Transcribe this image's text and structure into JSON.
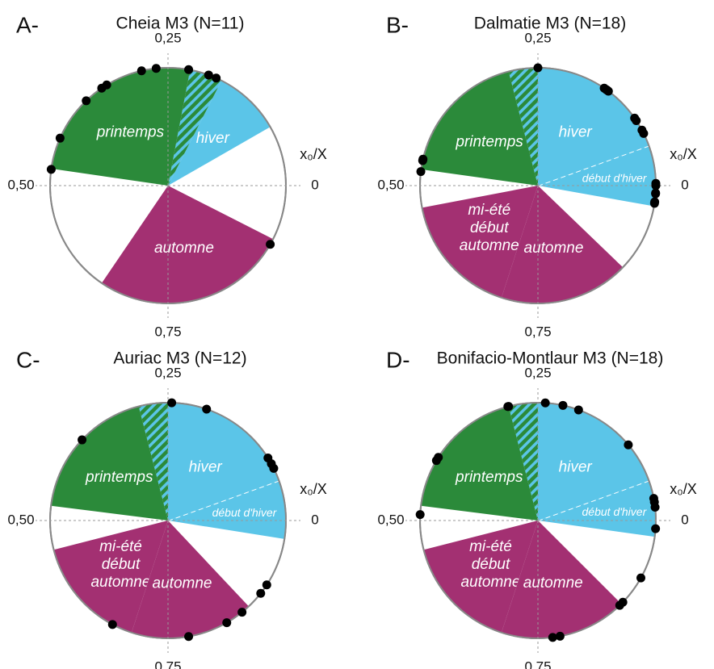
{
  "chart_data": [
    {
      "type": "circular",
      "panel": "A-",
      "title": "Cheia M3 (N=11)",
      "axis_label": "x₀/X",
      "ticks": [
        0,
        {
          "value": 0.25,
          "label": "0,25"
        },
        {
          "value": 0.5,
          "label": "0,50"
        },
        {
          "value": 0.75,
          "label": "0,75"
        }
      ],
      "sectors": [
        {
          "lines": [
            "hiver"
          ],
          "color": "#5bc5e8",
          "start": 0.083,
          "end": 0.175
        },
        {
          "hatch": true,
          "color": "#2b8a3a",
          "start": 0.175,
          "end": 0.22
        },
        {
          "lines": [
            "printemps"
          ],
          "color": "#2b8a3a",
          "start": 0.22,
          "end": 0.477
        },
        {
          "lines": [
            "automne"
          ],
          "color": "#a33072",
          "start": 0.655,
          "end": 0.925
        }
      ],
      "points": [
        0.478,
        0.434,
        0.372,
        0.345,
        0.337,
        0.286,
        0.266,
        0.222,
        0.194,
        0.183,
        0.917
      ]
    },
    {
      "type": "circular",
      "panel": "B-",
      "title": "Dalmatie M3 (N=18)",
      "axis_label": "x₀/X",
      "ticks": [
        0,
        {
          "value": 0.25,
          "label": "0,25"
        },
        {
          "value": 0.5,
          "label": "0,50"
        },
        {
          "value": 0.75,
          "label": "0,75"
        }
      ],
      "sectors": [
        {
          "lines": [
            "début d'hiver"
          ],
          "color": "#5bc5e8",
          "start": 0.972,
          "end": 0.055,
          "dashed": true
        },
        {
          "lines": [
            "hiver"
          ],
          "color": "#5bc5e8",
          "start": 0.055,
          "end": 0.25
        },
        {
          "hatch": true,
          "color": "#2b8a3a",
          "start": 0.25,
          "end": 0.29
        },
        {
          "lines": [
            "printemps"
          ],
          "color": "#2b8a3a",
          "start": 0.29,
          "end": 0.478
        },
        {
          "lines": [
            "mi-été",
            "début",
            "automne"
          ],
          "color": "#a33072",
          "start": 0.53,
          "end": 0.7
        },
        {
          "lines": [
            "automne"
          ],
          "color": "#a33072",
          "start": 0.7,
          "end": 0.878
        }
      ],
      "points": [
        0.25,
        0.155,
        0.152,
        0.15,
        0.148,
        0.097,
        0.093,
        0.078,
        0.073,
        0.003,
        0.0,
        0.99,
        0.989,
        0.978,
        0.976,
        0.466,
        0.464,
        0.481
      ]
    },
    {
      "type": "circular",
      "panel": "C-",
      "title": "Auriac M3 (N=12)",
      "axis_label": "x₀/X",
      "ticks": [
        0,
        {
          "value": 0.25,
          "label": "0,25"
        },
        {
          "value": 0.5,
          "label": "0,50"
        },
        {
          "value": 0.75,
          "label": "0,75"
        }
      ],
      "sectors": [
        {
          "lines": [
            "début d'hiver"
          ],
          "color": "#5bc5e8",
          "start": 0.975,
          "end": 0.055,
          "dashed": true
        },
        {
          "lines": [
            "hiver"
          ],
          "color": "#5bc5e8",
          "start": 0.055,
          "end": 0.25
        },
        {
          "hatch": true,
          "color": "#2b8a3a",
          "start": 0.25,
          "end": 0.29
        },
        {
          "lines": [
            "printemps"
          ],
          "color": "#2b8a3a",
          "start": 0.29,
          "end": 0.48
        },
        {
          "lines": [
            "mi-été",
            "début",
            "automne"
          ],
          "color": "#a33072",
          "start": 0.54,
          "end": 0.7
        },
        {
          "lines": [
            "automne"
          ],
          "color": "#a33072",
          "start": 0.7,
          "end": 0.87
        }
      ],
      "points": [
        0.245,
        0.197,
        0.38,
        0.089,
        0.08,
        0.073,
        0.908,
        0.894,
        0.858,
        0.833,
        0.672,
        0.778
      ]
    },
    {
      "type": "circular",
      "panel": "D-",
      "title": "Bonifacio-Montlaur M3 (N=18)",
      "axis_label": "x₀/X",
      "ticks": [
        0,
        {
          "value": 0.25,
          "label": "0,25"
        },
        {
          "value": 0.5,
          "label": "0,50"
        },
        {
          "value": 0.75,
          "label": "0,75"
        }
      ],
      "sectors": [
        {
          "lines": [
            "début d'hiver"
          ],
          "color": "#5bc5e8",
          "start": 0.978,
          "end": 0.055,
          "dashed": true
        },
        {
          "lines": [
            "hiver"
          ],
          "color": "#5bc5e8",
          "start": 0.055,
          "end": 0.25
        },
        {
          "hatch": true,
          "color": "#2b8a3a",
          "start": 0.25,
          "end": 0.29
        },
        {
          "lines": [
            "printemps"
          ],
          "color": "#2b8a3a",
          "start": 0.29,
          "end": 0.48
        },
        {
          "lines": [
            "mi-été",
            "début",
            "automne"
          ],
          "color": "#a33072",
          "start": 0.54,
          "end": 0.7
        },
        {
          "lines": [
            "automne"
          ],
          "color": "#a33072",
          "start": 0.7,
          "end": 0.875
        }
      ],
      "points": [
        0.291,
        0.29,
        0.24,
        0.216,
        0.194,
        0.111,
        0.03,
        0.025,
        0.018,
        0.989,
        0.41,
        0.415,
        0.492,
        0.919,
        0.878,
        0.872,
        0.78,
        0.77
      ]
    }
  ]
}
